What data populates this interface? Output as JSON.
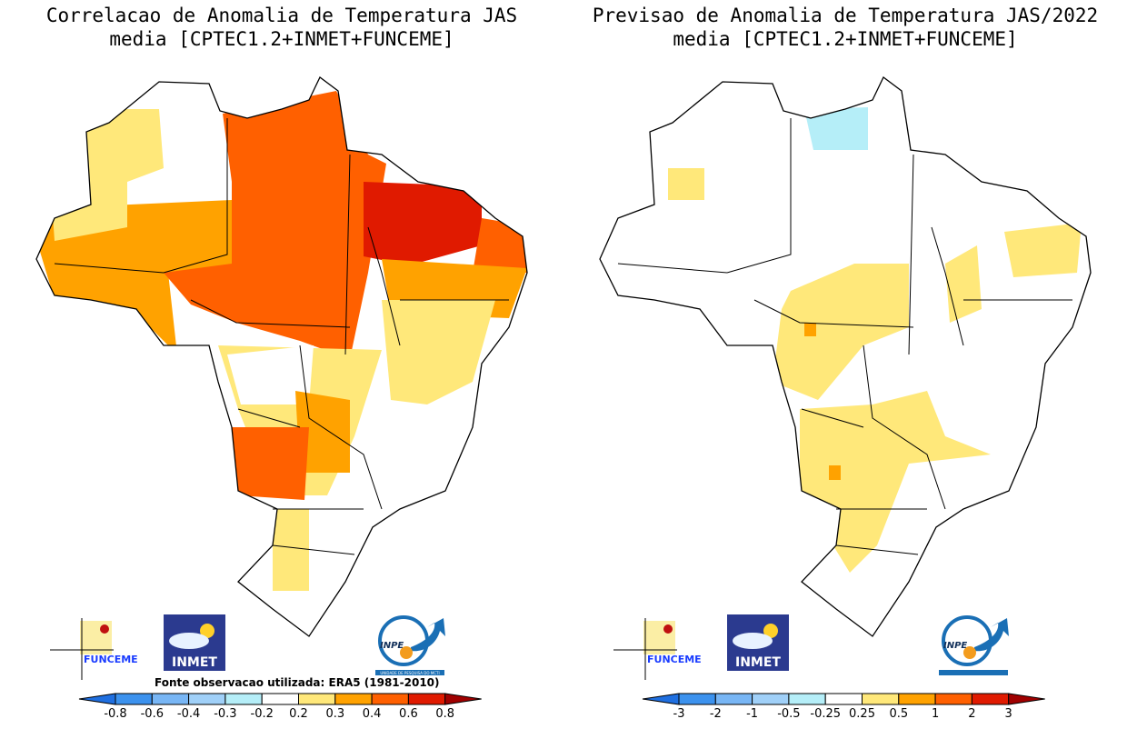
{
  "left_panel": {
    "title_line1": "Correlacao de Anomalia de Temperatura JAS",
    "title_line2": "media [CPTEC1.2+INMET+FUNCEME]",
    "source_note": "Fonte observacao utilizada: ERA5 (1981-2010)",
    "colorbar": {
      "labels": [
        "-0.8",
        "-0.6",
        "-0.4",
        "-0.3",
        "-0.2",
        "0.2",
        "0.3",
        "0.4",
        "0.6",
        "0.8"
      ],
      "colors": [
        "#1f6fe0",
        "#3c92ee",
        "#78b6f5",
        "#a0d0f8",
        "#b5eef8",
        "#ffffff",
        "#ffe87a",
        "#ffa200",
        "#ff6000",
        "#e01a00",
        "#a00000"
      ]
    }
  },
  "right_panel": {
    "title_line1": "Previsao de Anomalia de Temperatura JAS/2022",
    "title_line2": "media [CPTEC1.2+INMET+FUNCEME]",
    "colorbar": {
      "labels": [
        "-3",
        "-2",
        "-1",
        "-0.5",
        "-0.25",
        "0.25",
        "0.5",
        "1",
        "2",
        "3"
      ],
      "colors": [
        "#1f6fe0",
        "#3c92ee",
        "#78b6f5",
        "#a0d0f8",
        "#b5eef8",
        "#ffffff",
        "#ffe87a",
        "#ffa200",
        "#ff6000",
        "#e01a00",
        "#a00000"
      ]
    }
  },
  "logos": {
    "funceme": "FUNCEME",
    "inmet": "INMET",
    "inpe": "INPE",
    "inpe_sub": "UNIDADE DE PESQUISA DO MCTI"
  }
}
